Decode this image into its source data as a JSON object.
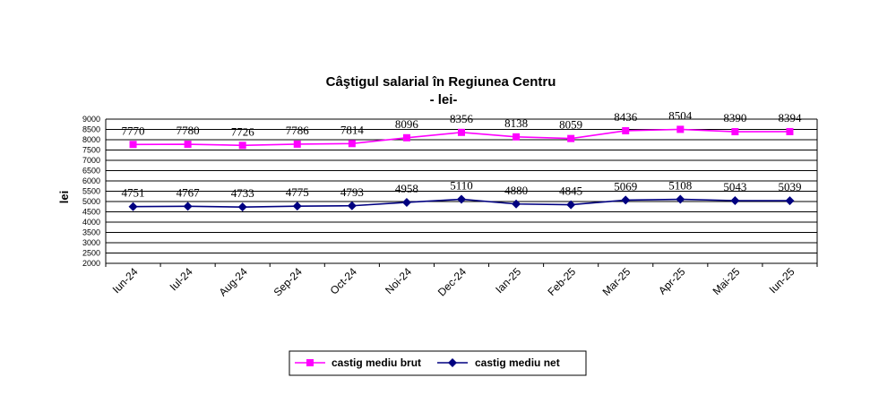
{
  "chart_data": {
    "type": "line",
    "title": "Câştigul salarial  în Regiunea Centru",
    "subtitle": "- lei-",
    "ylabel": "lei",
    "xlabel": "",
    "ylim": [
      2000,
      9000
    ],
    "ytick_step": 500,
    "grid": true,
    "legend_position": "bottom-center",
    "categories": [
      "Iun-24",
      "Iul-24",
      "Aug-24",
      "Sep-24",
      "Oct-24",
      "Noi-24",
      "Dec-24",
      "Ian-25",
      "Feb-25",
      "Mar-25",
      "Apr-25",
      "Mai-25",
      "Iun-25"
    ],
    "series": [
      {
        "name": "castig mediu brut",
        "color": "#ff00ff",
        "marker": "square",
        "values": [
          7770,
          7780,
          7726,
          7786,
          7814,
          8096,
          8356,
          8138,
          8059,
          8436,
          8504,
          8390,
          8394
        ]
      },
      {
        "name": "castig mediu net",
        "color": "#000080",
        "marker": "diamond",
        "values": [
          4751,
          4767,
          4733,
          4775,
          4793,
          4958,
          5110,
          4880,
          4845,
          5069,
          5108,
          5043,
          5039
        ]
      }
    ]
  }
}
